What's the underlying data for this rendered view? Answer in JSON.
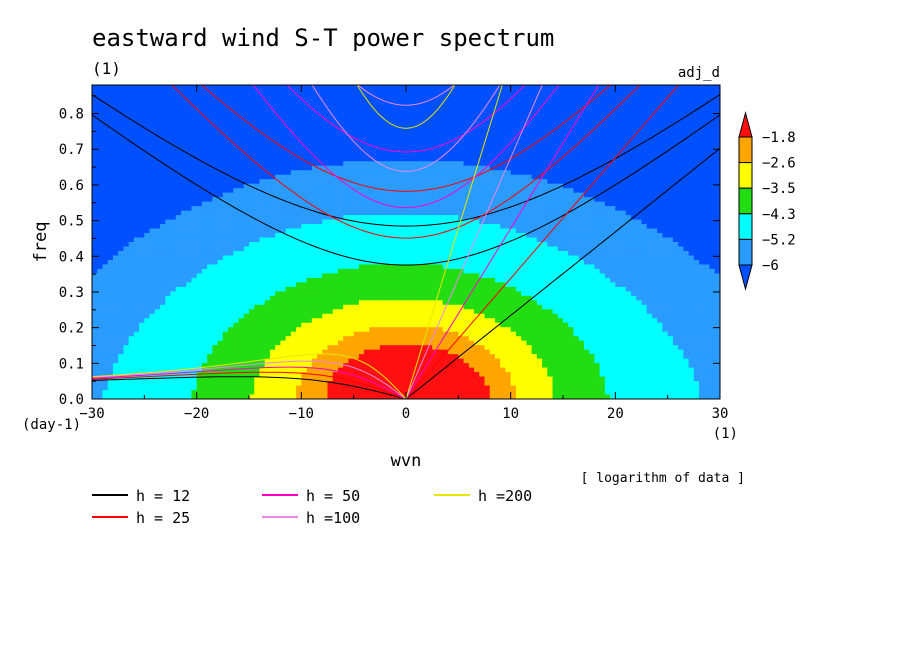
{
  "chart_data": {
    "type": "heatmap",
    "title": "eastward wind S-T power spectrum",
    "subtitle_left": "(1)",
    "subtitle_right": "adj_d",
    "xlabel": "wvn",
    "ylabel": "freq",
    "x_unit": "(1)",
    "y_unit": "(day-1)",
    "xlim": [
      -30,
      30
    ],
    "ylim": [
      0,
      0.88
    ],
    "x_ticks": [
      -30,
      -20,
      -10,
      0,
      10,
      20,
      30
    ],
    "x_tick_labels": [
      "−30",
      "−20",
      "−10",
      "0",
      "10",
      "20",
      "30"
    ],
    "y_ticks": [
      0,
      0.1,
      0.2,
      0.3,
      0.4,
      0.5,
      0.6,
      0.7,
      0.8
    ],
    "y_tick_labels": [
      "0.0",
      "0.1",
      "0.2",
      "0.3",
      "0.4",
      "0.5",
      "0.6",
      "0.7",
      "0.8"
    ],
    "note": "[ logarithm of data ]",
    "colorbar": {
      "levels": [
        "−1.8",
        "−2.6",
        "−3.5",
        "−4.3",
        "−5.2",
        "−6"
      ],
      "colors": [
        "#0050ff",
        "#2a9bff",
        "#00ffff",
        "#22dd11",
        "#ffff00",
        "#ffa500",
        "#ff1010"
      ]
    },
    "dispersion_curves": [
      {
        "label": "h = 12",
        "h": 12,
        "color": "#000000"
      },
      {
        "label": "h = 25",
        "h": 25,
        "color": "#ff0000"
      },
      {
        "label": "h = 50",
        "h": 50,
        "color": "#ff00cc"
      },
      {
        "label": "h =100",
        "h": 100,
        "color": "#e888e8"
      },
      {
        "label": "h =200",
        "h": 200,
        "color": "#e6e600"
      }
    ]
  }
}
